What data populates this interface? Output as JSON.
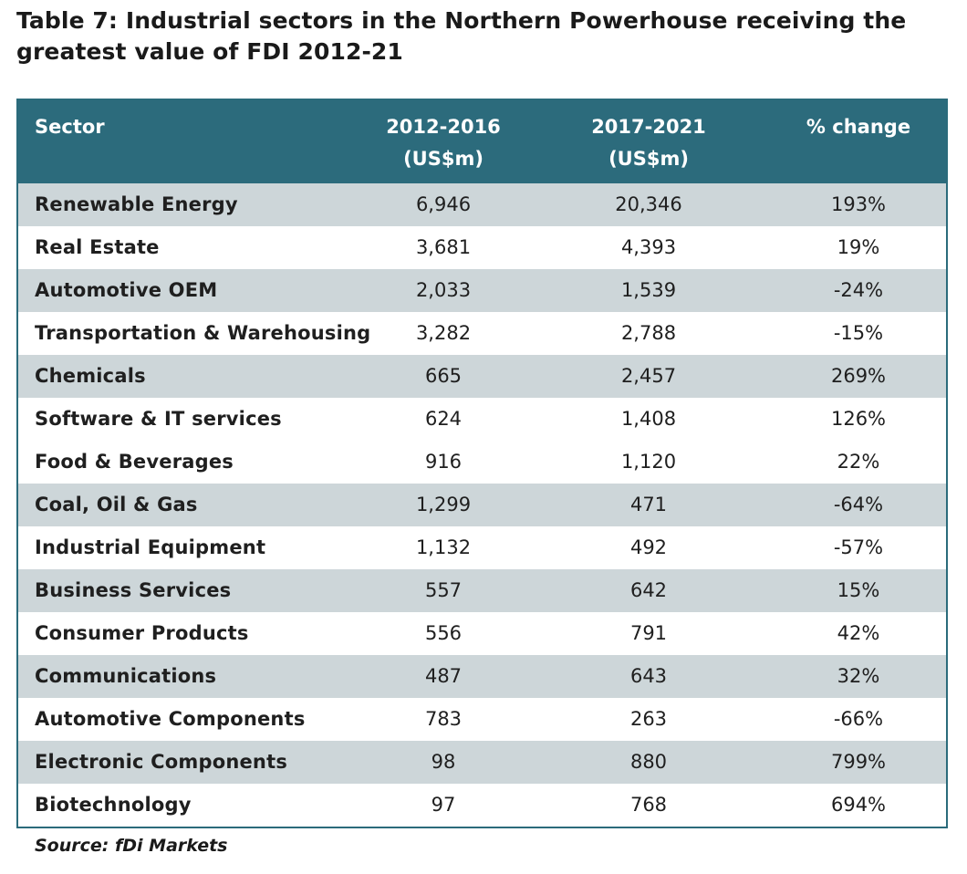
{
  "title": "Table 7: Industrial sectors in the Northern Powerhouse receiving the greatest value of FDI 2012-21",
  "colors": {
    "header_bg": "#2c6b7c",
    "shaded_row": "#cdd6d9",
    "border": "#2b6b7b"
  },
  "table": {
    "headers": {
      "sector": "Sector",
      "period1_line1": "2012-2016",
      "period1_line2": "(US$m)",
      "period2_line1": "2017-2021",
      "period2_line2": "(US$m)",
      "change": "% change"
    },
    "rows": [
      {
        "sector": "Renewable Energy",
        "v2012_2016": "6,946",
        "v2017_2021": "20,346",
        "change": "193%"
      },
      {
        "sector": "Real Estate",
        "v2012_2016": "3,681",
        "v2017_2021": "4,393",
        "change": "19%"
      },
      {
        "sector": "Automotive OEM",
        "v2012_2016": "2,033",
        "v2017_2021": "1,539",
        "change": "-24%"
      },
      {
        "sector": "Transportation & Warehousing",
        "v2012_2016": "3,282",
        "v2017_2021": "2,788",
        "change": "-15%"
      },
      {
        "sector": "Chemicals",
        "v2012_2016": "665",
        "v2017_2021": "2,457",
        "change": "269%"
      },
      {
        "sector": "Software & IT services",
        "v2012_2016": "624",
        "v2017_2021": "1,408",
        "change": "126%"
      },
      {
        "sector": "Food & Beverages",
        "v2012_2016": "916",
        "v2017_2021": "1,120",
        "change": "22%"
      },
      {
        "sector": "Coal, Oil & Gas",
        "v2012_2016": "1,299",
        "v2017_2021": "471",
        "change": "-64%"
      },
      {
        "sector": "Industrial Equipment",
        "v2012_2016": "1,132",
        "v2017_2021": "492",
        "change": "-57%"
      },
      {
        "sector": "Business Services",
        "v2012_2016": "557",
        "v2017_2021": "642",
        "change": "15%"
      },
      {
        "sector": "Consumer Products",
        "v2012_2016": "556",
        "v2017_2021": "791",
        "change": "42%"
      },
      {
        "sector": "Communications",
        "v2012_2016": "487",
        "v2017_2021": "643",
        "change": "32%"
      },
      {
        "sector": "Automotive Components",
        "v2012_2016": "783",
        "v2017_2021": "263",
        "change": "-66%"
      },
      {
        "sector": "Electronic Components",
        "v2012_2016": "98",
        "v2017_2021": "880",
        "change": "799%"
      },
      {
        "sector": "Biotechnology",
        "v2012_2016": "97",
        "v2017_2021": "768",
        "change": "694%"
      }
    ]
  },
  "source": "Source: fDi Markets"
}
